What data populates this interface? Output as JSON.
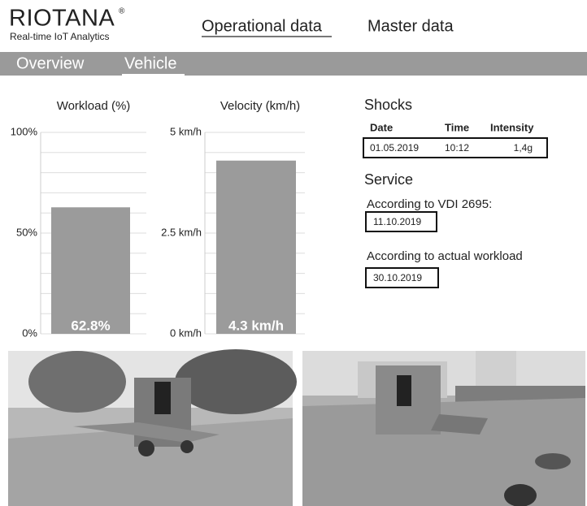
{
  "header": {
    "logo": "RIOTANA",
    "logo_mark": "®",
    "tagline": "Real-time IoT Analytics",
    "nav": [
      "Operational data",
      "Master data"
    ]
  },
  "tabs": [
    "Overview",
    "Vehicle"
  ],
  "chart_data": [
    {
      "type": "bar",
      "title": "Workload (%)",
      "values": [
        62.8
      ],
      "value_labels": [
        "62.8%"
      ],
      "color": "#9b9b9b",
      "ylim": [
        0,
        100
      ],
      "yticks": [
        {
          "value": 0,
          "label": "0%"
        },
        {
          "value": 50,
          "label": "50%"
        },
        {
          "value": 100,
          "label": "100%"
        }
      ],
      "grid": true
    },
    {
      "type": "bar",
      "title": "Velocity (km/h)",
      "values": [
        4.3
      ],
      "value_labels": [
        "4.3 km/h"
      ],
      "color": "#9b9b9b",
      "ylim": [
        0,
        5
      ],
      "yticks": [
        {
          "value": 0,
          "label": "0 km/h"
        },
        {
          "value": 2.5,
          "label": "2.5 km/h"
        },
        {
          "value": 5,
          "label": "5 km/h"
        }
      ],
      "grid": true
    }
  ],
  "shocks": {
    "title": "Shocks",
    "columns": [
      "Date",
      "Time",
      "Intensity"
    ],
    "rows": [
      [
        "01.05.2019",
        "10:12",
        "1,4g"
      ]
    ]
  },
  "service": {
    "title": "Service",
    "items": [
      {
        "label": "According to VDI 2695:",
        "date": "11.10.2019"
      },
      {
        "label": "According to actual workload",
        "date": "30.10.2019"
      }
    ]
  }
}
